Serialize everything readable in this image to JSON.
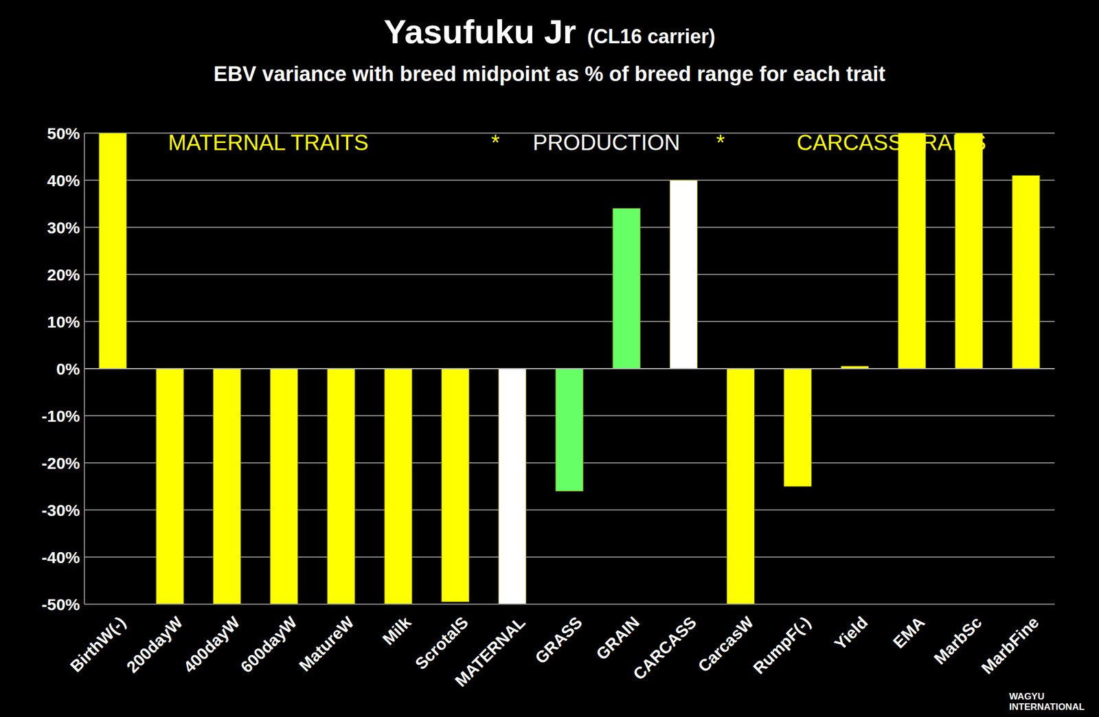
{
  "chart_data": {
    "type": "bar",
    "title": "Yasufuku Jr",
    "subtitle": "EBV variance with breed midpoint as % of breed range for each trait",
    "categories": [
      "BirthW(-)",
      "200dayW",
      "400dayW",
      "600dayW",
      "MatureW",
      "Milk",
      "ScrotalS",
      "MATERNAL",
      "GRASS",
      "GRAIN",
      "CARCASS",
      "CarcasW",
      "RumpF(-)",
      "Yield",
      "EMA",
      "MarbSc",
      "MarbFine"
    ],
    "values": [
      50,
      -50,
      -50,
      -50,
      -50,
      -50,
      -49.5,
      -50,
      -26,
      34,
      40,
      -50,
      -25,
      0.5,
      50,
      50,
      41
    ],
    "colors": [
      "#ffff00",
      "#ffff00",
      "#ffff00",
      "#ffff00",
      "#ffff00",
      "#ffff00",
      "#ffff00",
      "#ffffff",
      "#66ff66",
      "#66ff66",
      "#ffffff",
      "#ffff00",
      "#ffff00",
      "#ffff00",
      "#ffff00",
      "#ffff00",
      "#ffff00"
    ],
    "ylim": [
      -50,
      50
    ],
    "yticks": [
      {
        "value": -50,
        "label": "-50%"
      },
      {
        "value": -40,
        "label": "-40%"
      },
      {
        "value": -30,
        "label": "-30%"
      },
      {
        "value": -20,
        "label": "-20%"
      },
      {
        "value": -10,
        "label": "-10%"
      },
      {
        "value": 0,
        "label": "0%"
      },
      {
        "value": 10,
        "label": "10%"
      },
      {
        "value": 20,
        "label": "20%"
      },
      {
        "value": 30,
        "label": "30%"
      },
      {
        "value": 40,
        "label": "40%"
      },
      {
        "value": 50,
        "label": "50%"
      }
    ],
    "grid": true,
    "annotations": [
      {
        "text": "(CL16 carrier)",
        "color": "#ffffff"
      },
      {
        "text": "MATERNAL TRAITS",
        "color": "#ffff00"
      },
      {
        "text": "*",
        "color": "#ffff00"
      },
      {
        "text": "PRODUCTION",
        "color": "#ffffff"
      },
      {
        "text": "*",
        "color": "#ffff00"
      },
      {
        "text": "CARCASS TRAITS",
        "color": "#ffff00"
      },
      {
        "text": "WAGYU INTERNATIONAL",
        "color": "#ffffff"
      }
    ]
  }
}
